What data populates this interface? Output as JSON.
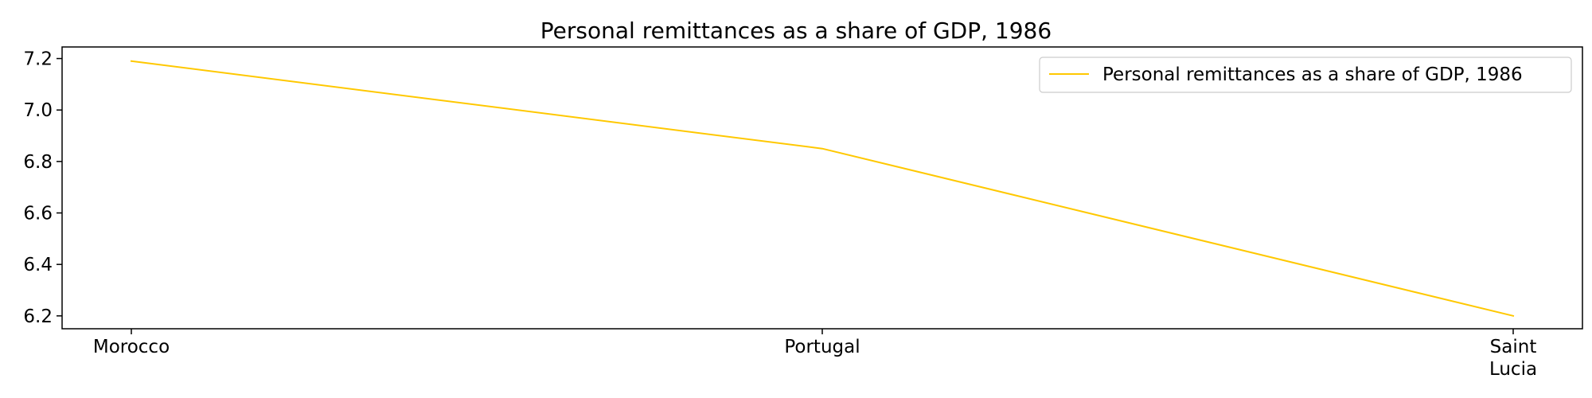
{
  "chart_data": {
    "type": "line",
    "title": "Personal remittances as a share of GDP, 1986",
    "xlabel": "",
    "ylabel": "",
    "categories": [
      "Morocco",
      "Portugal",
      "Saint Lucia"
    ],
    "category_tick_lines": [
      [
        "Morocco"
      ],
      [
        "Portugal"
      ],
      [
        "Saint",
        "Lucia"
      ]
    ],
    "series": [
      {
        "name": "Personal remittances as a share of GDP, 1986",
        "values": [
          7.19,
          6.85,
          6.2
        ],
        "color": "#FFC800"
      }
    ],
    "ylim": [
      6.15,
      7.245
    ],
    "yticks": [
      6.2,
      6.4,
      6.6,
      6.8,
      7.0,
      7.2
    ],
    "ytick_labels": [
      "6.2",
      "6.4",
      "6.6",
      "6.8",
      "7.0",
      "7.2"
    ],
    "grid": false,
    "legend_position": "top-right",
    "axis_color": "#000000"
  }
}
